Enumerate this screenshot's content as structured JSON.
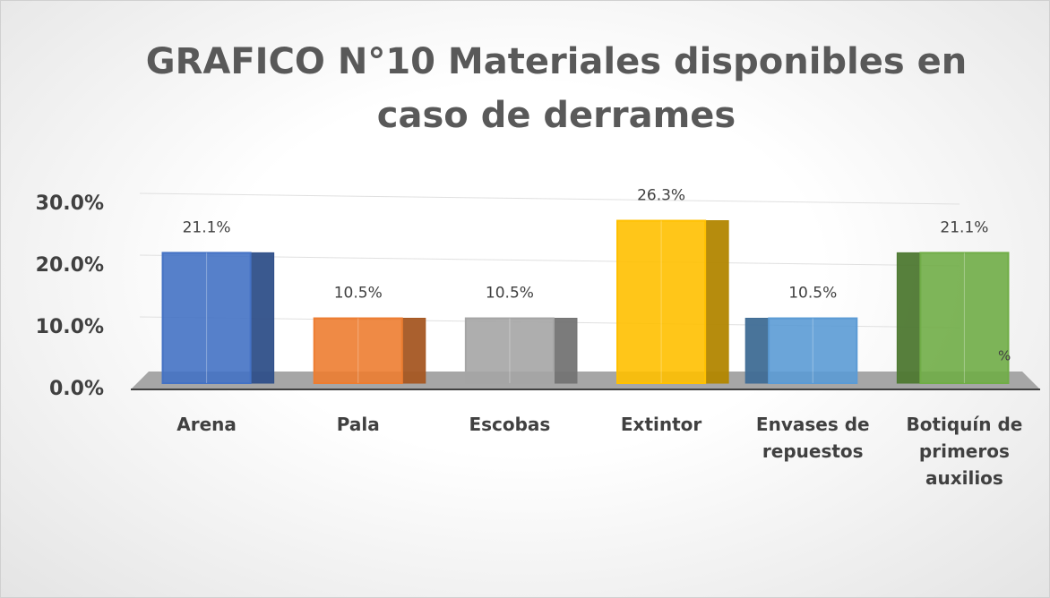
{
  "chart_data": {
    "type": "bar",
    "title": "GRAFICO N°10 Materiales disponibles en caso de derrames",
    "categories": [
      "Arena",
      "Pala",
      "Escobas",
      "Extintor",
      "Envases de repuestos",
      "Botiquín de primeros auxilios"
    ],
    "values": [
      21.1,
      10.5,
      10.5,
      26.3,
      10.5,
      21.1
    ],
    "value_labels": [
      "21.1%",
      "10.5%",
      "10.5%",
      "26.3%",
      "10.5%",
      "21.1%"
    ],
    "colors": [
      "#4472c4",
      "#ed7d31",
      "#a5a5a5",
      "#ffc000",
      "#5b9bd5",
      "#70ad47"
    ],
    "ylim": [
      0,
      30
    ],
    "yticks": [
      {
        "value": 0,
        "label": "0.0%"
      },
      {
        "value": 10,
        "label": "10.0%"
      },
      {
        "value": 20,
        "label": "20.0%"
      },
      {
        "value": 30,
        "label": "30.0%"
      }
    ],
    "grid": true,
    "annotation": "%"
  }
}
